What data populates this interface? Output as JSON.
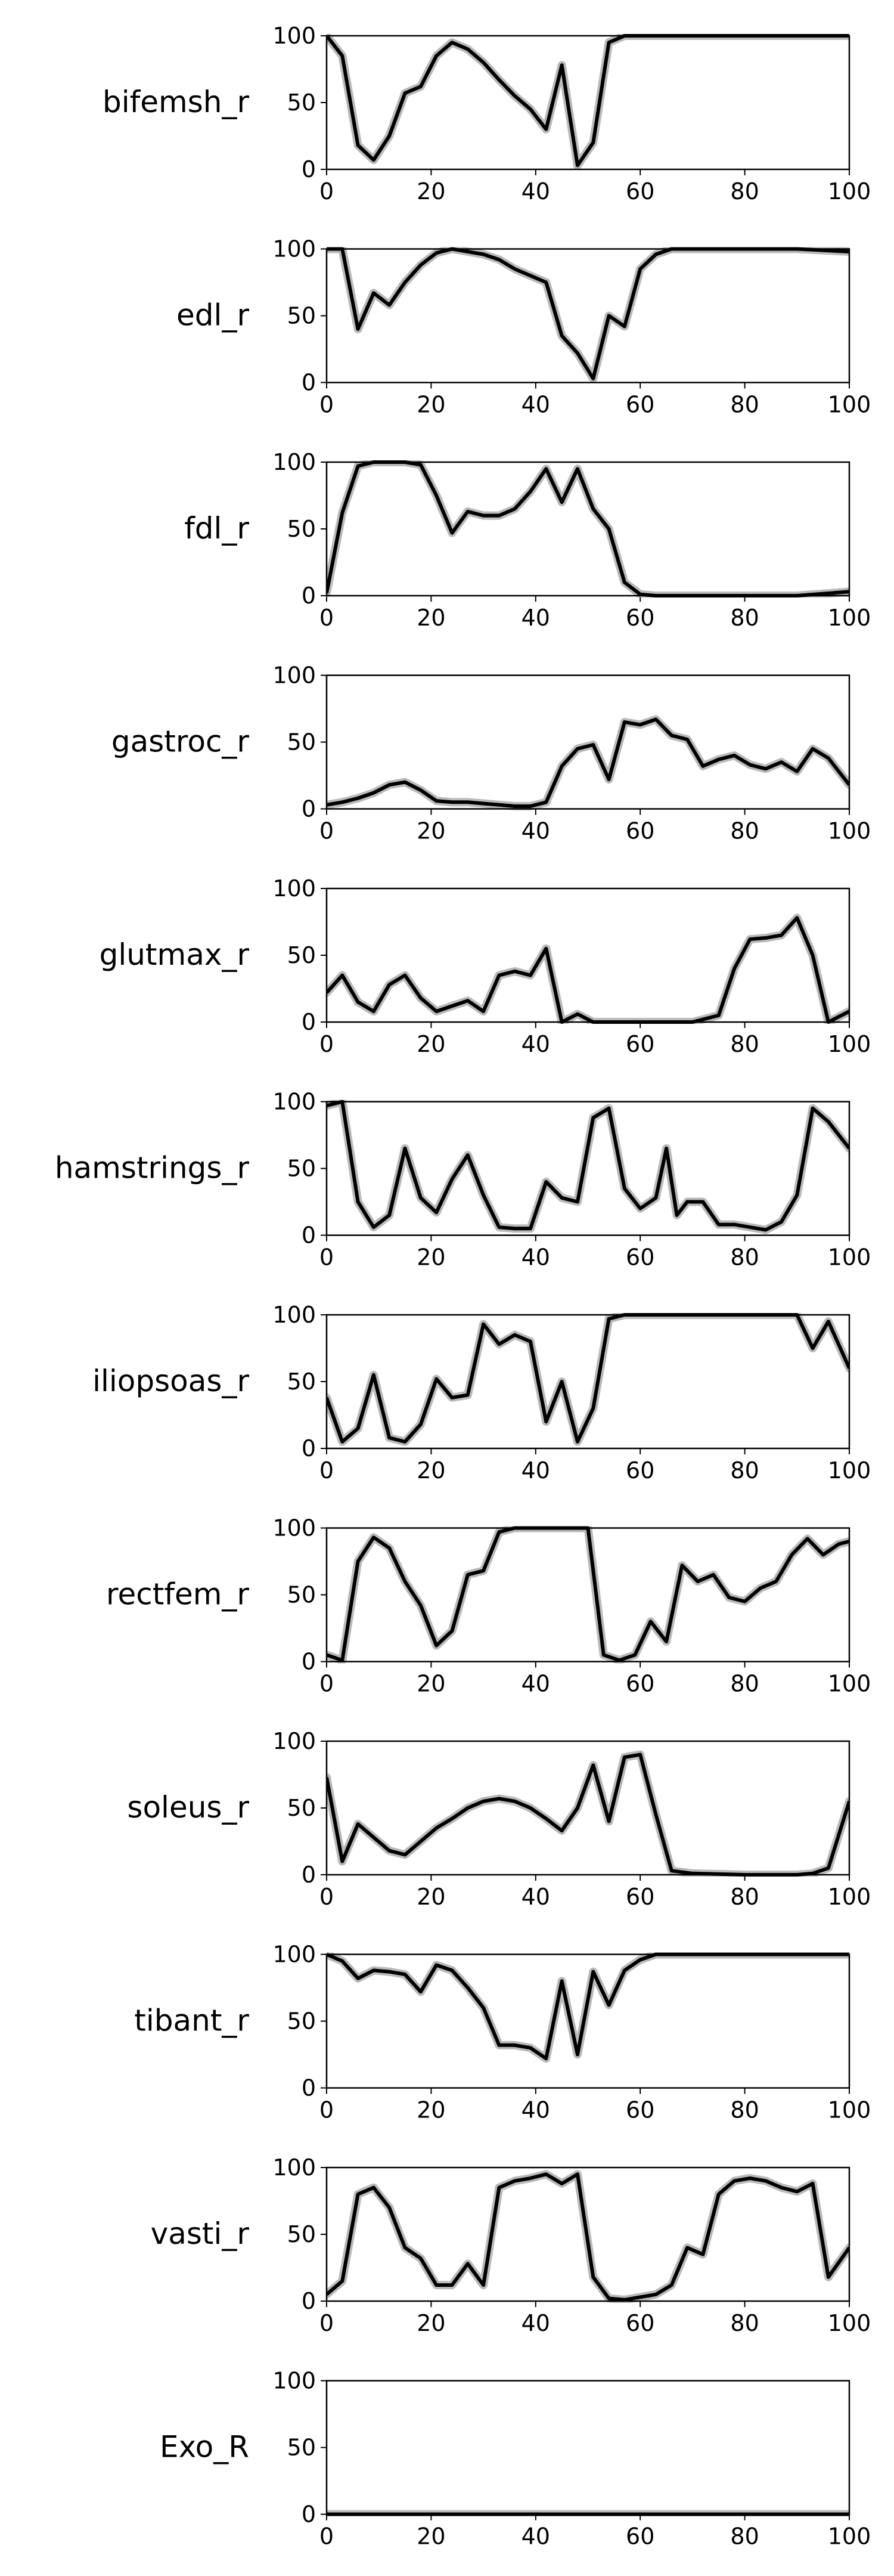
{
  "chart_data": [
    {
      "type": "line",
      "ylabel": "bifemsh_r",
      "xlim": [
        0,
        100
      ],
      "ylim": [
        0,
        100
      ],
      "xticks": [
        0,
        20,
        40,
        60,
        80,
        100
      ],
      "yticks": [
        0,
        50,
        100
      ],
      "x": [
        0,
        3,
        6,
        9,
        12,
        15,
        18,
        21,
        24,
        27,
        30,
        33,
        36,
        39,
        42,
        45,
        48,
        51,
        54,
        57,
        60,
        70,
        80,
        90,
        100
      ],
      "y": [
        100,
        85,
        18,
        7,
        25,
        57,
        62,
        85,
        95,
        90,
        80,
        67,
        55,
        45,
        30,
        78,
        3,
        20,
        95,
        100,
        100,
        100,
        100,
        100,
        100
      ]
    },
    {
      "type": "line",
      "ylabel": "edl_r",
      "xlim": [
        0,
        100
      ],
      "ylim": [
        0,
        100
      ],
      "xticks": [
        0,
        20,
        40,
        60,
        80,
        100
      ],
      "yticks": [
        0,
        50,
        100
      ],
      "x": [
        0,
        3,
        6,
        9,
        12,
        15,
        18,
        21,
        24,
        27,
        30,
        33,
        36,
        39,
        42,
        45,
        48,
        51,
        54,
        57,
        60,
        63,
        66,
        70,
        80,
        90,
        100
      ],
      "y": [
        100,
        100,
        40,
        67,
        58,
        75,
        88,
        97,
        100,
        98,
        96,
        92,
        85,
        80,
        75,
        35,
        22,
        3,
        50,
        42,
        85,
        96,
        100,
        100,
        100,
        100,
        98
      ]
    },
    {
      "type": "line",
      "ylabel": "fdl_r",
      "xlim": [
        0,
        100
      ],
      "ylim": [
        0,
        100
      ],
      "xticks": [
        0,
        20,
        40,
        60,
        80,
        100
      ],
      "yticks": [
        0,
        50,
        100
      ],
      "x": [
        0,
        3,
        6,
        9,
        12,
        15,
        18,
        21,
        24,
        27,
        30,
        33,
        36,
        39,
        42,
        45,
        48,
        51,
        54,
        57,
        60,
        63,
        70,
        80,
        90,
        100
      ],
      "y": [
        2,
        62,
        97,
        100,
        100,
        100,
        98,
        75,
        47,
        63,
        60,
        60,
        65,
        78,
        95,
        70,
        95,
        65,
        50,
        10,
        1,
        0,
        0,
        0,
        0,
        3
      ]
    },
    {
      "type": "line",
      "ylabel": "gastroc_r",
      "xlim": [
        0,
        100
      ],
      "ylim": [
        0,
        100
      ],
      "xticks": [
        0,
        20,
        40,
        60,
        80,
        100
      ],
      "yticks": [
        0,
        50,
        100
      ],
      "x": [
        0,
        3,
        6,
        9,
        12,
        15,
        18,
        21,
        24,
        27,
        30,
        33,
        36,
        39,
        42,
        45,
        48,
        51,
        54,
        57,
        60,
        63,
        66,
        69,
        72,
        75,
        78,
        81,
        84,
        87,
        90,
        93,
        96,
        100
      ],
      "y": [
        3,
        5,
        8,
        12,
        18,
        20,
        14,
        6,
        5,
        5,
        4,
        3,
        2,
        2,
        5,
        32,
        45,
        48,
        22,
        65,
        63,
        67,
        55,
        52,
        32,
        37,
        40,
        33,
        30,
        35,
        28,
        45,
        38,
        18
      ]
    },
    {
      "type": "line",
      "ylabel": "glutmax_r",
      "xlim": [
        0,
        100
      ],
      "ylim": [
        0,
        100
      ],
      "xticks": [
        0,
        20,
        40,
        60,
        80,
        100
      ],
      "yticks": [
        0,
        50,
        100
      ],
      "x": [
        0,
        3,
        6,
        9,
        12,
        15,
        18,
        21,
        24,
        27,
        30,
        33,
        36,
        39,
        42,
        45,
        48,
        51,
        54,
        57,
        60,
        70,
        75,
        78,
        81,
        84,
        87,
        90,
        93,
        96,
        100
      ],
      "y": [
        22,
        35,
        15,
        8,
        28,
        35,
        18,
        8,
        12,
        16,
        8,
        35,
        38,
        35,
        55,
        0,
        6,
        0,
        0,
        0,
        0,
        0,
        5,
        40,
        62,
        63,
        65,
        78,
        50,
        0,
        8
      ]
    },
    {
      "type": "line",
      "ylabel": "hamstrings_r",
      "xlim": [
        0,
        100
      ],
      "ylim": [
        0,
        100
      ],
      "xticks": [
        0,
        20,
        40,
        60,
        80,
        100
      ],
      "yticks": [
        0,
        50,
        100
      ],
      "x": [
        0,
        3,
        6,
        9,
        12,
        15,
        18,
        21,
        24,
        27,
        30,
        33,
        36,
        39,
        42,
        45,
        48,
        51,
        54,
        57,
        60,
        63,
        65,
        67,
        69,
        72,
        75,
        78,
        81,
        84,
        87,
        90,
        93,
        96,
        100
      ],
      "y": [
        97,
        100,
        25,
        6,
        15,
        65,
        28,
        17,
        42,
        60,
        30,
        6,
        5,
        5,
        40,
        28,
        25,
        88,
        95,
        35,
        20,
        28,
        65,
        15,
        25,
        25,
        8,
        8,
        6,
        4,
        10,
        30,
        95,
        85,
        65
      ]
    },
    {
      "type": "line",
      "ylabel": "iliopsoas_r",
      "xlim": [
        0,
        100
      ],
      "ylim": [
        0,
        100
      ],
      "xticks": [
        0,
        20,
        40,
        60,
        80,
        100
      ],
      "yticks": [
        0,
        50,
        100
      ],
      "x": [
        0,
        3,
        6,
        9,
        12,
        15,
        18,
        21,
        24,
        27,
        30,
        33,
        36,
        39,
        42,
        45,
        48,
        51,
        54,
        57,
        60,
        70,
        80,
        90,
        93,
        96,
        100
      ],
      "y": [
        38,
        5,
        15,
        55,
        8,
        5,
        18,
        52,
        38,
        40,
        93,
        78,
        85,
        80,
        20,
        50,
        5,
        30,
        97,
        100,
        100,
        100,
        100,
        100,
        75,
        95,
        60
      ]
    },
    {
      "type": "line",
      "ylabel": "rectfem_r",
      "xlim": [
        0,
        100
      ],
      "ylim": [
        0,
        100
      ],
      "xticks": [
        0,
        20,
        40,
        60,
        80,
        100
      ],
      "yticks": [
        0,
        50,
        100
      ],
      "x": [
        0,
        3,
        6,
        9,
        12,
        15,
        18,
        21,
        24,
        27,
        30,
        33,
        36,
        40,
        45,
        50,
        53,
        56,
        59,
        62,
        65,
        68,
        71,
        74,
        77,
        80,
        83,
        86,
        89,
        92,
        95,
        98,
        100
      ],
      "y": [
        5,
        1,
        75,
        93,
        85,
        60,
        42,
        12,
        23,
        65,
        68,
        97,
        100,
        100,
        100,
        100,
        5,
        1,
        5,
        30,
        15,
        72,
        60,
        65,
        48,
        45,
        55,
        60,
        80,
        92,
        80,
        88,
        90
      ]
    },
    {
      "type": "line",
      "ylabel": "soleus_r",
      "xlim": [
        0,
        100
      ],
      "ylim": [
        0,
        100
      ],
      "xticks": [
        0,
        20,
        40,
        60,
        80,
        100
      ],
      "yticks": [
        0,
        50,
        100
      ],
      "x": [
        0,
        3,
        6,
        9,
        12,
        15,
        18,
        21,
        24,
        27,
        30,
        33,
        36,
        39,
        42,
        45,
        48,
        51,
        54,
        57,
        60,
        63,
        66,
        70,
        80,
        90,
        93,
        96,
        100
      ],
      "y": [
        73,
        10,
        38,
        28,
        18,
        15,
        25,
        35,
        42,
        50,
        55,
        57,
        55,
        50,
        42,
        33,
        50,
        82,
        40,
        88,
        90,
        45,
        3,
        1,
        0,
        0,
        1,
        5,
        55
      ]
    },
    {
      "type": "line",
      "ylabel": "tibant_r",
      "xlim": [
        0,
        100
      ],
      "ylim": [
        0,
        100
      ],
      "xticks": [
        0,
        20,
        40,
        60,
        80,
        100
      ],
      "yticks": [
        0,
        50,
        100
      ],
      "x": [
        0,
        3,
        6,
        9,
        12,
        15,
        18,
        21,
        24,
        27,
        30,
        33,
        36,
        39,
        42,
        45,
        48,
        51,
        54,
        57,
        60,
        63,
        66,
        70,
        80,
        90,
        100
      ],
      "y": [
        100,
        95,
        82,
        88,
        87,
        85,
        72,
        92,
        88,
        75,
        60,
        32,
        32,
        30,
        22,
        80,
        25,
        87,
        62,
        88,
        96,
        100,
        100,
        100,
        100,
        100,
        100
      ]
    },
    {
      "type": "line",
      "ylabel": "vasti_r",
      "xlim": [
        0,
        100
      ],
      "ylim": [
        0,
        100
      ],
      "xticks": [
        0,
        20,
        40,
        60,
        80,
        100
      ],
      "yticks": [
        0,
        50,
        100
      ],
      "x": [
        0,
        3,
        6,
        9,
        12,
        15,
        18,
        21,
        24,
        27,
        30,
        33,
        36,
        39,
        42,
        45,
        48,
        51,
        54,
        57,
        60,
        63,
        66,
        69,
        72,
        75,
        78,
        81,
        84,
        87,
        90,
        93,
        96,
        100
      ],
      "y": [
        5,
        15,
        80,
        85,
        70,
        40,
        32,
        12,
        12,
        28,
        12,
        85,
        90,
        92,
        95,
        88,
        95,
        18,
        2,
        1,
        3,
        5,
        12,
        40,
        35,
        80,
        90,
        92,
        90,
        85,
        82,
        88,
        18,
        40
      ]
    },
    {
      "type": "line",
      "ylabel": "Exo_R",
      "xlim": [
        0,
        100
      ],
      "ylim": [
        0,
        100
      ],
      "xticks": [
        0,
        20,
        40,
        60,
        80,
        100
      ],
      "yticks": [
        0,
        50,
        100
      ],
      "x": [
        0,
        100
      ],
      "y": [
        0,
        0
      ]
    }
  ]
}
